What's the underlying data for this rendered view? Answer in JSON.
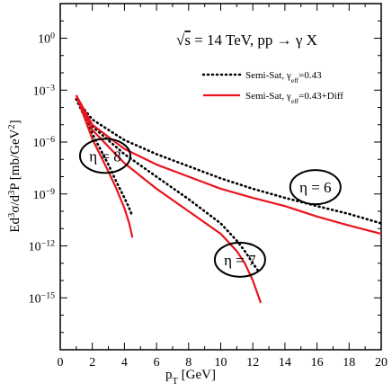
{
  "chart_data": {
    "type": "line",
    "title": "√s = 14 TeV,  pp → γ X",
    "xlabel": "p_T [GeV]",
    "ylabel": "Ed³σ/d³P [mb/GeV²]",
    "xlim": [
      0,
      20
    ],
    "ylim_log10": [
      -18,
      2
    ],
    "y_scale": "log",
    "x_ticks": [
      0,
      2,
      4,
      6,
      8,
      10,
      12,
      14,
      16,
      18,
      20
    ],
    "y_ticks_exp": [
      0,
      -3,
      -6,
      -9,
      -12,
      -15
    ],
    "grid": false,
    "legend_position": "top-right",
    "series": [
      {
        "name": "Semi-Sat, γ_eff=0.43",
        "style": "dotted",
        "color": "#000000",
        "curves": [
          {
            "eta": 6,
            "points": [
              [
                1.0,
                0.0003
              ],
              [
                2,
                2e-05
              ],
              [
                4,
                1.3e-06
              ],
              [
                6,
                2e-07
              ],
              [
                8,
                4e-08
              ],
              [
                10,
                8e-09
              ],
              [
                12,
                2e-09
              ],
              [
                14,
                6e-10
              ],
              [
                16,
                2e-10
              ],
              [
                18,
                7e-11
              ],
              [
                20,
                2e-11
              ]
            ]
          },
          {
            "eta": 7,
            "points": [
              [
                1.0,
                0.0003
              ],
              [
                2,
                8e-06
              ],
              [
                4,
                2e-07
              ],
              [
                6,
                1e-08
              ],
              [
                8,
                5e-10
              ],
              [
                10,
                2e-11
              ],
              [
                11,
                2e-12
              ],
              [
                11.5,
                5e-13
              ],
              [
                12,
                1e-13
              ],
              [
                12.3,
                4e-14
              ]
            ]
          },
          {
            "eta": 8,
            "points": [
              [
                1.0,
                0.0003
              ],
              [
                2,
                3e-06
              ],
              [
                3,
                5e-08
              ],
              [
                3.5,
                5e-09
              ],
              [
                4,
                6e-10
              ],
              [
                4.3,
                1.5e-10
              ],
              [
                4.5,
                5e-11
              ]
            ]
          }
        ]
      },
      {
        "name": "Semi-Sat, γ_eff=0.43+Diff",
        "style": "solid",
        "color": "#e8141e",
        "curves": [
          {
            "eta": 6,
            "points": [
              [
                1.0,
                0.0005
              ],
              [
                2,
                1e-05
              ],
              [
                4,
                4e-07
              ],
              [
                6,
                5e-08
              ],
              [
                8,
                1e-08
              ],
              [
                10,
                2e-09
              ],
              [
                12,
                6e-10
              ],
              [
                14,
                2e-10
              ],
              [
                16,
                5e-11
              ],
              [
                18,
                1.5e-11
              ],
              [
                20,
                5e-12
              ]
            ]
          },
          {
            "eta": 7,
            "points": [
              [
                1.0,
                0.0005
              ],
              [
                2,
                5e-06
              ],
              [
                4,
                6e-08
              ],
              [
                6,
                2e-09
              ],
              [
                8,
                1e-10
              ],
              [
                10,
                5e-12
              ],
              [
                11,
                5e-13
              ],
              [
                11.5,
                1e-13
              ],
              [
                12,
                1e-14
              ],
              [
                12.5,
                5e-16
              ]
            ]
          },
          {
            "eta": 8,
            "points": [
              [
                1.0,
                0.0005
              ],
              [
                2,
                1.5e-06
              ],
              [
                3,
                2e-08
              ],
              [
                3.5,
                2e-09
              ],
              [
                4,
                1.5e-10
              ],
              [
                4.3,
                2e-11
              ],
              [
                4.5,
                3e-12
              ]
            ]
          }
        ]
      }
    ],
    "annotations": [
      {
        "text": "η = 8",
        "x": 2.8,
        "y": 1.6e-07
      },
      {
        "text": "η = 7",
        "x": 11.2,
        "y": 1.6e-13
      },
      {
        "text": "η = 6",
        "x": 15.9,
        "y": 2.5e-09
      }
    ]
  }
}
